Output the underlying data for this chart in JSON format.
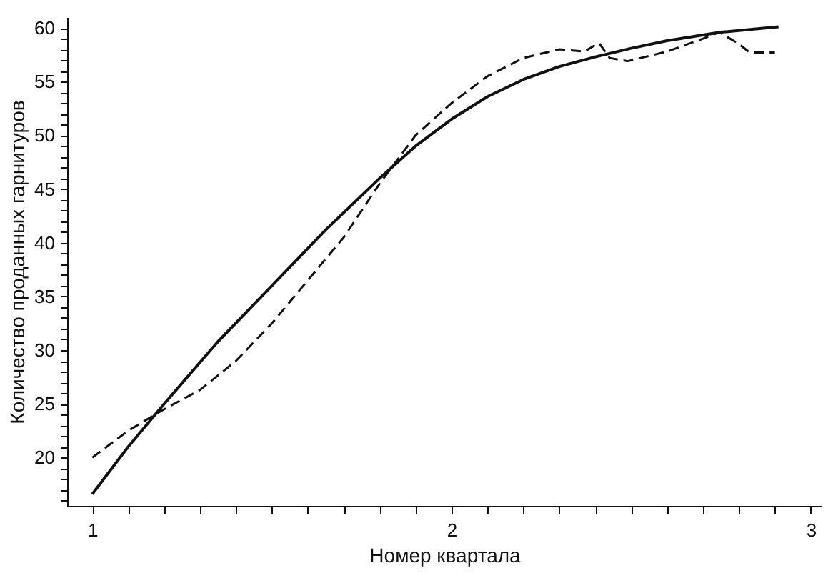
{
  "chart_data": {
    "type": "line",
    "xlabel": "Номер квартала",
    "ylabel": "Количество проданных гарнитуров",
    "xlim": [
      0.93,
      3.03
    ],
    "ylim": [
      15.5,
      61
    ],
    "xticks": [
      1,
      {
        "value": 1.1,
        "label": null
      },
      {
        "value": 1.2,
        "label": null
      },
      {
        "value": 1.3,
        "label": null
      },
      {
        "value": 1.4,
        "label": null
      },
      {
        "value": 1.5,
        "label": null
      },
      {
        "value": 1.6,
        "label": null
      },
      {
        "value": 1.7,
        "label": null
      },
      {
        "value": 1.8,
        "label": null
      },
      {
        "value": 1.9,
        "label": null
      },
      2,
      {
        "value": 2.1,
        "label": null
      },
      {
        "value": 2.2,
        "label": null
      },
      {
        "value": 2.3,
        "label": null
      },
      {
        "value": 2.4,
        "label": null
      },
      {
        "value": 2.5,
        "label": null
      },
      {
        "value": 2.6,
        "label": null
      },
      {
        "value": 2.7,
        "label": null
      },
      {
        "value": 2.8,
        "label": null
      },
      {
        "value": 2.9,
        "label": null
      },
      3
    ],
    "yticks": [
      {
        "value": 16,
        "label": null
      },
      {
        "value": 17,
        "label": null
      },
      {
        "value": 18,
        "label": null
      },
      {
        "value": 19,
        "label": null
      },
      20,
      {
        "value": 21,
        "label": null
      },
      {
        "value": 22,
        "label": null
      },
      {
        "value": 23,
        "label": null
      },
      {
        "value": 24,
        "label": null
      },
      25,
      {
        "value": 26,
        "label": null
      },
      {
        "value": 27,
        "label": null
      },
      {
        "value": 28,
        "label": null
      },
      {
        "value": 29,
        "label": null
      },
      30,
      {
        "value": 31,
        "label": null
      },
      {
        "value": 32,
        "label": null
      },
      {
        "value": 33,
        "label": null
      },
      {
        "value": 34,
        "label": null
      },
      35,
      {
        "value": 36,
        "label": null
      },
      {
        "value": 37,
        "label": null
      },
      {
        "value": 38,
        "label": null
      },
      {
        "value": 39,
        "label": null
      },
      40,
      {
        "value": 41,
        "label": null
      },
      {
        "value": 42,
        "label": null
      },
      {
        "value": 43,
        "label": null
      },
      {
        "value": 44,
        "label": null
      },
      45,
      {
        "value": 46,
        "label": null
      },
      {
        "value": 47,
        "label": null
      },
      {
        "value": 48,
        "label": null
      },
      {
        "value": 49,
        "label": null
      },
      50,
      {
        "value": 51,
        "label": null
      },
      {
        "value": 52,
        "label": null
      },
      {
        "value": 53,
        "label": null
      },
      {
        "value": 54,
        "label": null
      },
      55,
      {
        "value": 56,
        "label": null
      },
      {
        "value": 57,
        "label": null
      },
      {
        "value": 58,
        "label": null
      },
      {
        "value": 59,
        "label": null
      },
      60
    ],
    "grid": false,
    "series": [
      {
        "color": "#111111",
        "line_style": "solid",
        "x": [
          1,
          1.1,
          1.2,
          1.35,
          1.5,
          1.65,
          1.8,
          1.9,
          2.0,
          2.1,
          2.2,
          2.3,
          2.4,
          2.5,
          2.6,
          2.75,
          2.91
        ],
        "values": [
          16.6,
          21,
          25,
          30.8,
          36,
          41.2,
          46,
          49,
          51.5,
          53.6,
          55.2,
          56.4,
          57.3,
          58.1,
          58.8,
          59.6,
          60.1
        ]
      },
      {
        "color": "#111111",
        "line_style": "dashed",
        "x": [
          1,
          1.1,
          1.2,
          1.3,
          1.4,
          1.5,
          1.6,
          1.7,
          1.8,
          1.9,
          2.0,
          2.1,
          2.2,
          2.3,
          2.37,
          2.41,
          2.44,
          2.49,
          2.6,
          2.7,
          2.745,
          2.8,
          2.83,
          2.9
        ],
        "values": [
          20,
          22.5,
          24.5,
          26.3,
          29,
          32.5,
          36.5,
          40.5,
          45.5,
          50,
          53,
          55.5,
          57.2,
          58,
          57.8,
          58.6,
          57.2,
          56.9,
          57.8,
          59,
          59.6,
          58.5,
          57.7,
          57.7
        ]
      }
    ]
  }
}
